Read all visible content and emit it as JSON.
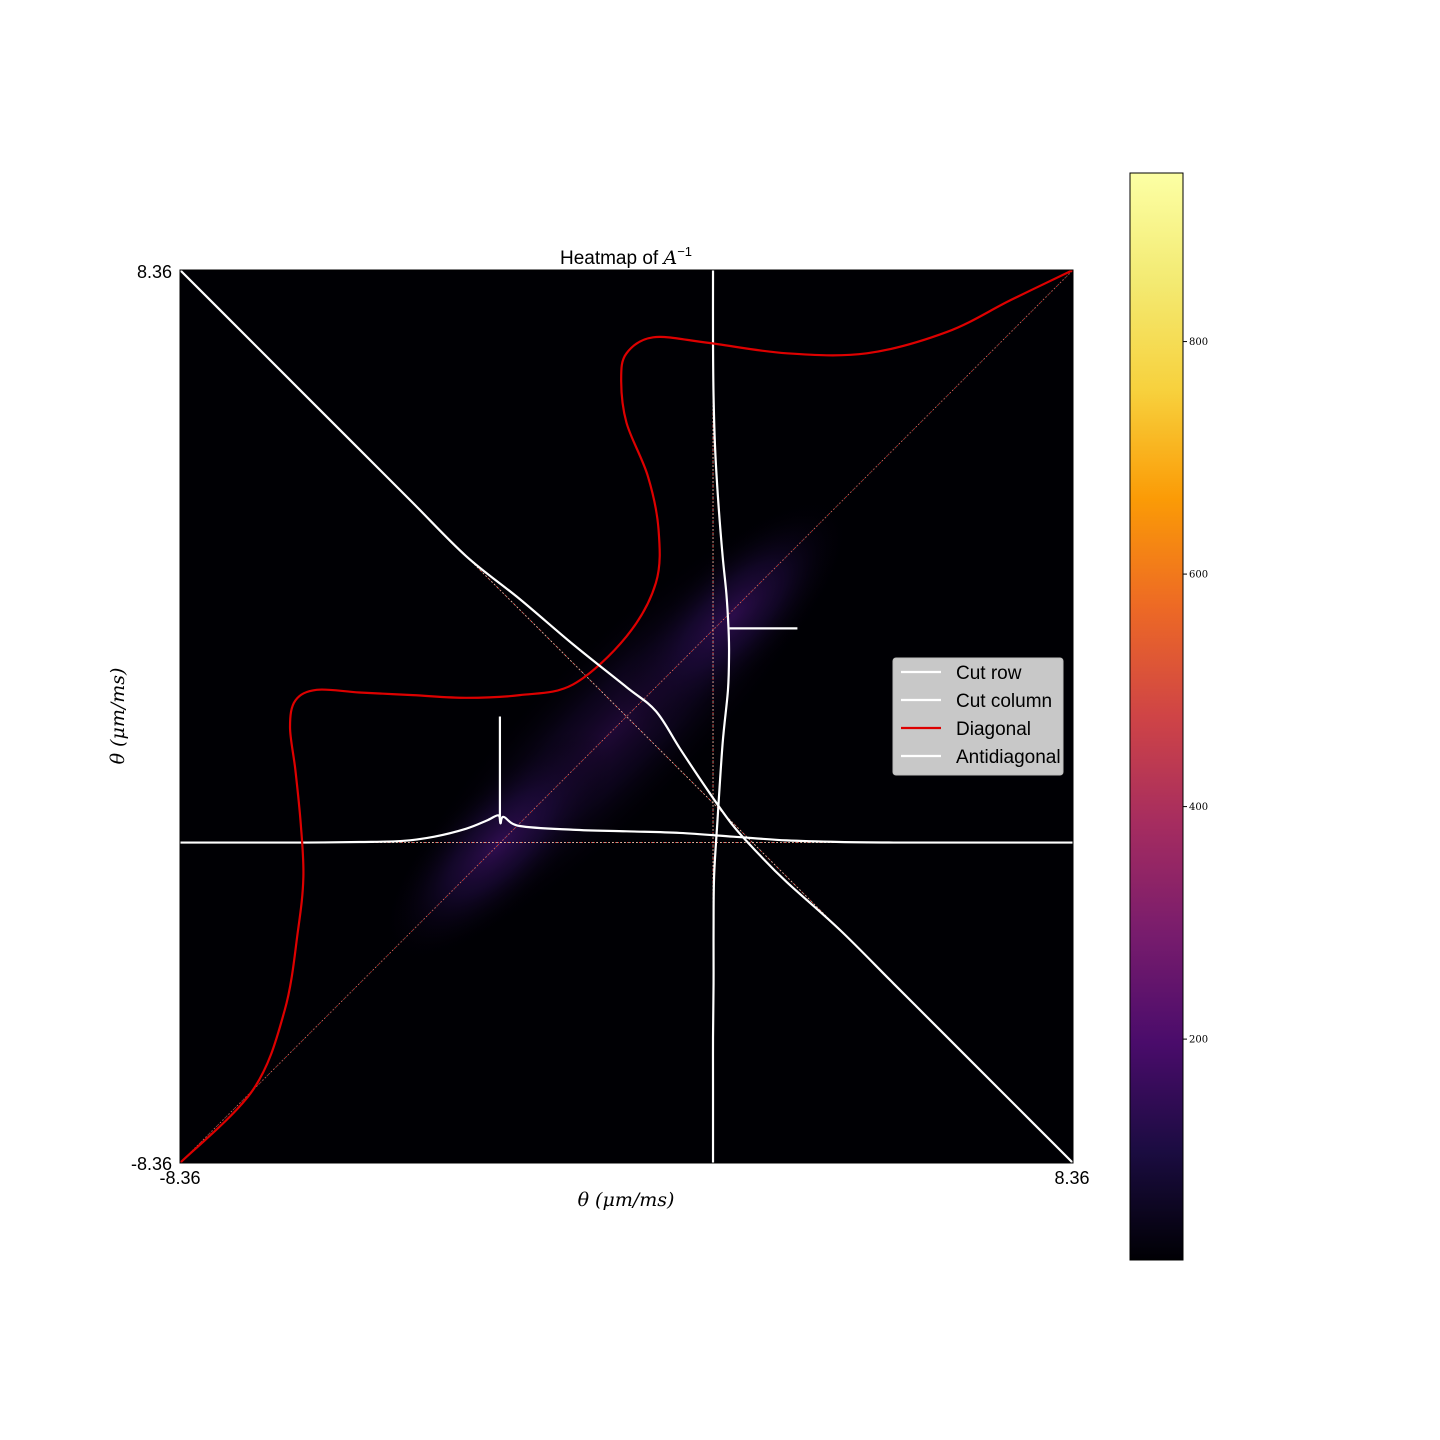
{
  "chart_data": {
    "type": "heatmap",
    "title": "Heatmap of A⁻¹",
    "title_parts": {
      "prefix": "Heatmap of ",
      "base": "A",
      "superscript": "−1"
    },
    "xlabel": "θ (μm/ms)",
    "ylabel": "θ (μm/ms)",
    "xlim": [
      -8.36,
      8.36
    ],
    "ylim": [
      -8.36,
      8.36
    ],
    "x_ticks": [
      "-8.36",
      "8.36"
    ],
    "y_ticks": [
      "-8.36",
      "8.36"
    ],
    "colormap": "inferno",
    "colorbar": {
      "range": [
        10,
        945
      ],
      "ticks": [
        200,
        400,
        600,
        800
      ],
      "tick_labels": [
        "200",
        "400",
        "600",
        "800"
      ]
    },
    "heatmap": {
      "description_values": "Dark field with a faint purple band along the main diagonal, strongest near (-2.4, -2.4) and (2.0, 2.0)",
      "peaks": [
        {
          "x": -2.4,
          "y": -2.4,
          "value": 60
        },
        {
          "x": 2.0,
          "y": 1.9,
          "value": 55
        }
      ],
      "cut_row_y": -2.36,
      "cut_column_x": 1.62
    },
    "legend": {
      "placement": "center-right",
      "entries": [
        {
          "label": "Cut row",
          "color": "#ffffff"
        },
        {
          "label": "Cut column",
          "color": "#ffffff"
        },
        {
          "label": "Diagonal",
          "color": "#dd0000"
        },
        {
          "label": "Antidiagonal",
          "color": "#ffffff"
        }
      ]
    },
    "series": [
      {
        "name": "Cut row",
        "color": "#ffffff",
        "x": [
          -8.36,
          -7.0,
          -6.0,
          -5.0,
          -4.2,
          -3.6,
          -3.0,
          -2.62,
          -2.4,
          -2.36,
          -2.3,
          -2.0,
          -1.0,
          0.0,
          1.0,
          2.0,
          3.0,
          4.0,
          5.0,
          6.0,
          7.0,
          8.36
        ],
        "y": [
          -2.36,
          -2.36,
          -2.36,
          -2.35,
          -2.33,
          -2.25,
          -2.1,
          -1.95,
          -1.85,
          -2.0,
          -1.88,
          -2.05,
          -2.12,
          -2.15,
          -2.18,
          -2.25,
          -2.32,
          -2.35,
          -2.36,
          -2.36,
          -2.36,
          -2.36
        ]
      },
      {
        "name": "Cut row spike",
        "color": "#ffffff",
        "x": [
          -2.37,
          -2.37
        ],
        "y": [
          -1.88,
          0.0
        ]
      },
      {
        "name": "Cut column",
        "color": "#ffffff",
        "x": [
          1.62,
          1.62,
          1.62,
          1.63,
          1.63,
          1.64,
          1.7,
          1.8,
          1.9,
          1.92,
          1.91,
          1.87,
          1.8,
          1.72,
          1.66,
          1.63,
          1.62,
          1.62
        ],
        "y": [
          -8.36,
          -7.0,
          -6.0,
          -5.0,
          -4.0,
          -3.0,
          -2.0,
          -0.5,
          0.5,
          1.2,
          1.65,
          2.3,
          3.0,
          4.0,
          5.0,
          6.0,
          7.0,
          8.36
        ]
      },
      {
        "name": "Cut column spike",
        "color": "#ffffff",
        "x": [
          1.93,
          3.2
        ],
        "y": [
          1.65,
          1.65
        ]
      },
      {
        "name": "Diagonal",
        "color": "#dd0000",
        "x": [
          -8.36,
          -7.0,
          -6.4,
          -6.15,
          -6.05,
          -6.1,
          -6.2,
          -6.3,
          -6.2,
          -5.8,
          -5.0,
          -4.0,
          -3.0,
          -2.0,
          -1.0,
          0.0,
          0.55,
          0.6,
          0.4,
          0.0,
          -0.1,
          0.0,
          0.5,
          1.5,
          3.0,
          4.5,
          6.0,
          7.2,
          8.36
        ],
        "y": [
          -8.36,
          -7.0,
          -5.5,
          -4.0,
          -3.0,
          -2.0,
          -1.0,
          -0.2,
          0.3,
          0.5,
          0.45,
          0.4,
          0.35,
          0.4,
          0.6,
          1.5,
          2.5,
          3.5,
          4.5,
          5.5,
          6.3,
          6.8,
          7.1,
          7.0,
          6.8,
          6.8,
          7.2,
          7.8,
          8.36
        ]
      },
      {
        "name": "Antidiagonal",
        "color": "#ffffff",
        "x": [
          -8.36,
          -7.0,
          -6.0,
          -5.0,
          -4.0,
          -3.0,
          -2.0,
          -1.0,
          0.0,
          0.55,
          1.0,
          1.5,
          2.0,
          2.5,
          3.0,
          4.0,
          5.0,
          6.0,
          7.0,
          8.36
        ],
        "y": [
          8.36,
          7.0,
          6.0,
          5.0,
          4.0,
          3.0,
          2.2,
          1.35,
          0.55,
          0.1,
          -0.6,
          -1.35,
          -2.05,
          -2.6,
          -3.1,
          -4.0,
          -5.0,
          -6.0,
          -7.0,
          -8.36
        ]
      }
    ],
    "reference_lines": [
      {
        "name": "diagonal-reference",
        "color": "#cc2222",
        "x": [
          -8.36,
          8.36
        ],
        "y": [
          -8.36,
          8.36
        ]
      },
      {
        "name": "antidiagonal-reference",
        "color": "#cc2222",
        "x": [
          -8.36,
          8.36
        ],
        "y": [
          8.36,
          -8.36
        ]
      },
      {
        "name": "row-reference",
        "color": "#cc2222",
        "x": [
          -8.36,
          8.36
        ],
        "y": [
          -2.36,
          -2.36
        ]
      },
      {
        "name": "column-reference",
        "color": "#cc2222",
        "x": [
          1.62,
          1.62
        ],
        "y": [
          -8.36,
          8.36
        ]
      }
    ]
  }
}
